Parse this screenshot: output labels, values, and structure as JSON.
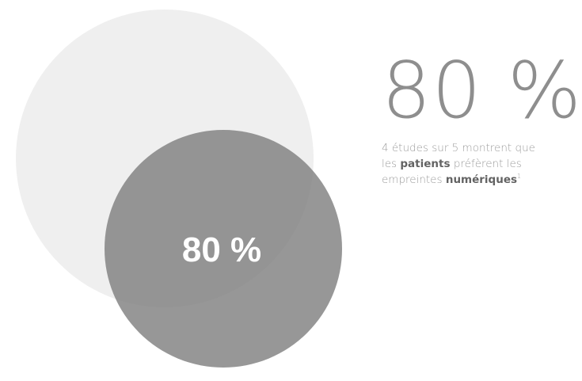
{
  "chart_data": {
    "type": "venn",
    "label": "80 %",
    "sets": [
      {
        "name": "",
        "size": 100
      },
      {
        "name": "",
        "size": 80
      }
    ],
    "colors": {
      "outer": "#efefef",
      "inner": "#7d7d7d",
      "label": "#ffffff"
    }
  },
  "stat": {
    "value": "80 %",
    "line1": "4 études sur 5 montrent que",
    "line2_a": "les",
    "line2_b": "patients",
    "line2_c": "préfèrent les",
    "line3_a": "empreintes",
    "line3_b": "numériques",
    "footnote": "1"
  }
}
